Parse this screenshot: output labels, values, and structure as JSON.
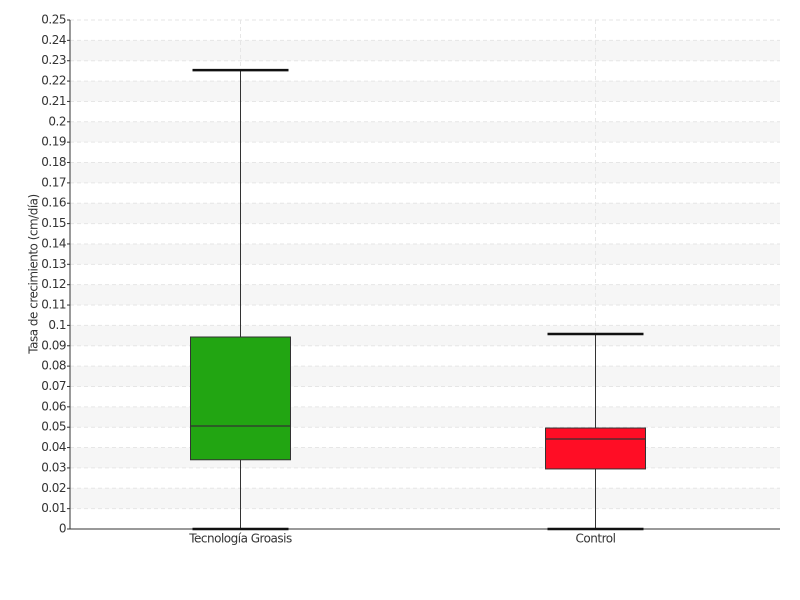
{
  "chart_data": {
    "type": "box",
    "y_label": "Tasa de crecimiento (cm/día)",
    "categories": [
      "Tecnología Groasis",
      "Control"
    ],
    "colors": [
      "#22a512",
      "#ff0d25"
    ],
    "min": [
      0,
      0
    ],
    "q1": [
      0.034,
      0.0295
    ],
    "median": [
      0.0506,
      0.0442
    ],
    "q3": [
      0.0943,
      0.0496
    ],
    "max": [
      0.2254,
      0.0958
    ],
    "ylim": [
      0,
      0.25
    ],
    "yticks": [
      0,
      0.01,
      0.02,
      0.03,
      0.04,
      0.05,
      0.06,
      0.07,
      0.08,
      0.09,
      0.1,
      0.11,
      0.12,
      0.13,
      0.14,
      0.15,
      0.16,
      0.17,
      0.18,
      0.19,
      0.2,
      0.21,
      0.22,
      0.23,
      0.24,
      0.25
    ],
    "grid": true
  }
}
